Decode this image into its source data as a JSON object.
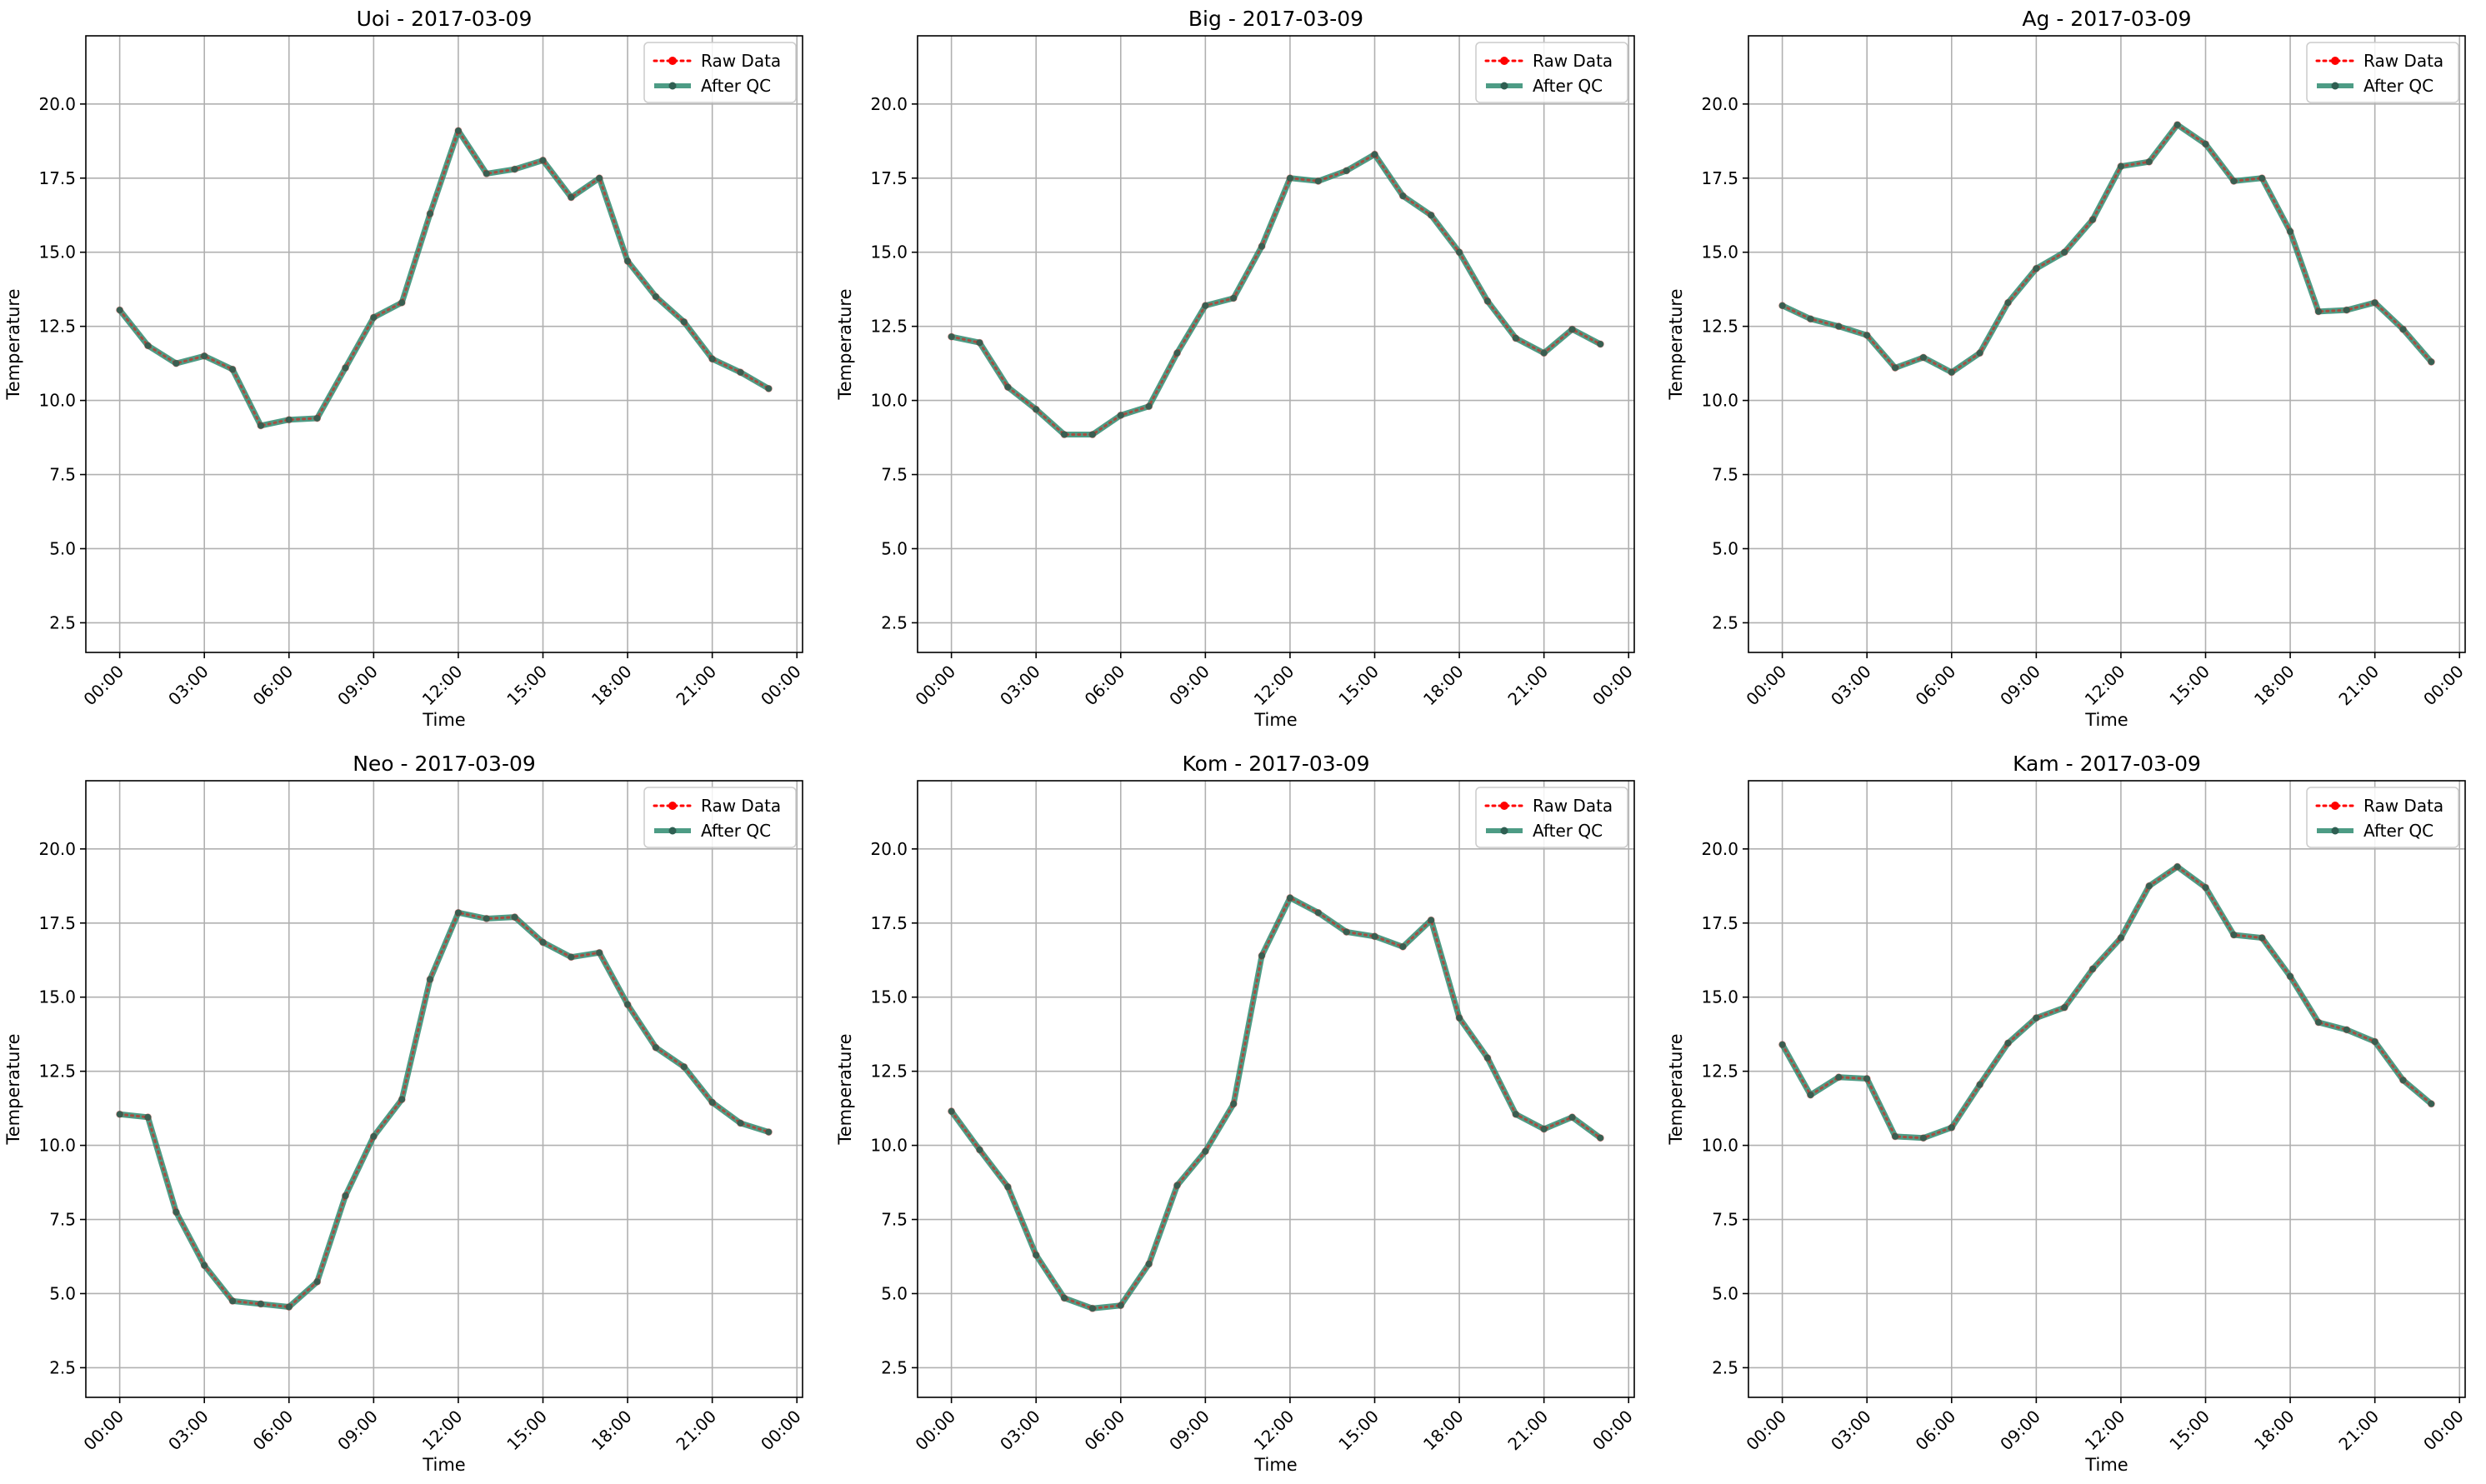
{
  "figure": {
    "raw_color": "#ff0000",
    "qc_color": "#2e8b70",
    "grid_color": "#b0b0b0"
  },
  "chart_data": [
    {
      "type": "line",
      "title": "Uoi - 2017-03-09",
      "xlabel": "Time",
      "ylabel": "Temperature",
      "x_ticks": [
        "00:00",
        "03:00",
        "06:00",
        "09:00",
        "12:00",
        "15:00",
        "18:00",
        "21:00",
        "00:00"
      ],
      "x_tick_hours": [
        0,
        3,
        6,
        9,
        12,
        15,
        18,
        21,
        24
      ],
      "xlim": [
        -1.2,
        24.2
      ],
      "y_ticks": [
        "2.5",
        "5.0",
        "7.5",
        "10.0",
        "12.5",
        "15.0",
        "17.5",
        "20.0"
      ],
      "ylim": [
        1.5,
        22.3
      ],
      "grid": true,
      "legend": "top-right",
      "x_hours": [
        0,
        1,
        2,
        3,
        4,
        5,
        6,
        7,
        8,
        9,
        10,
        11,
        12,
        13,
        14,
        15,
        16,
        17,
        18,
        19,
        20,
        21,
        22,
        23
      ],
      "series": [
        {
          "name": "Raw Data",
          "style": "dotted",
          "color": "#ff0000",
          "values": [
            13.05,
            11.85,
            11.25,
            11.5,
            11.05,
            9.15,
            9.35,
            9.4,
            11.1,
            12.8,
            13.3,
            16.3,
            19.1,
            17.65,
            17.8,
            18.1,
            16.85,
            17.5,
            14.7,
            13.5,
            12.65,
            11.4,
            10.95,
            10.4
          ]
        },
        {
          "name": "After QC",
          "style": "solid",
          "color": "#2e8b70",
          "values": [
            13.05,
            11.85,
            11.25,
            11.5,
            11.05,
            9.15,
            9.35,
            9.4,
            11.1,
            12.8,
            13.3,
            16.3,
            19.1,
            17.65,
            17.8,
            18.1,
            16.85,
            17.5,
            14.7,
            13.5,
            12.65,
            11.4,
            10.95,
            10.4
          ]
        }
      ]
    },
    {
      "type": "line",
      "title": "Big - 2017-03-09",
      "xlabel": "Time",
      "ylabel": "Temperature",
      "x_ticks": [
        "00:00",
        "03:00",
        "06:00",
        "09:00",
        "12:00",
        "15:00",
        "18:00",
        "21:00",
        "00:00"
      ],
      "x_tick_hours": [
        0,
        3,
        6,
        9,
        12,
        15,
        18,
        21,
        24
      ],
      "xlim": [
        -1.2,
        24.2
      ],
      "y_ticks": [
        "2.5",
        "5.0",
        "7.5",
        "10.0",
        "12.5",
        "15.0",
        "17.5",
        "20.0"
      ],
      "ylim": [
        1.5,
        22.3
      ],
      "grid": true,
      "legend": "top-right",
      "x_hours": [
        0,
        1,
        2,
        3,
        4,
        5,
        6,
        7,
        8,
        9,
        10,
        11,
        12,
        13,
        14,
        15,
        16,
        17,
        18,
        19,
        20,
        21,
        22,
        23
      ],
      "series": [
        {
          "name": "Raw Data",
          "style": "dotted",
          "color": "#ff0000",
          "values": [
            12.15,
            11.95,
            10.45,
            9.7,
            8.85,
            8.85,
            9.5,
            9.8,
            11.6,
            13.2,
            13.45,
            15.2,
            17.5,
            17.4,
            17.75,
            18.3,
            16.9,
            16.25,
            15.0,
            13.35,
            12.1,
            11.6,
            12.4,
            11.9
          ]
        },
        {
          "name": "After QC",
          "style": "solid",
          "color": "#2e8b70",
          "values": [
            12.15,
            11.95,
            10.45,
            9.7,
            8.85,
            8.85,
            9.5,
            9.8,
            11.6,
            13.2,
            13.45,
            15.2,
            17.5,
            17.4,
            17.75,
            18.3,
            16.9,
            16.25,
            15.0,
            13.35,
            12.1,
            11.6,
            12.4,
            11.9
          ]
        }
      ]
    },
    {
      "type": "line",
      "title": "Ag - 2017-03-09",
      "xlabel": "Time",
      "ylabel": "Temperature",
      "x_ticks": [
        "00:00",
        "03:00",
        "06:00",
        "09:00",
        "12:00",
        "15:00",
        "18:00",
        "21:00",
        "00:00"
      ],
      "x_tick_hours": [
        0,
        3,
        6,
        9,
        12,
        15,
        18,
        21,
        24
      ],
      "xlim": [
        -1.2,
        24.2
      ],
      "y_ticks": [
        "2.5",
        "5.0",
        "7.5",
        "10.0",
        "12.5",
        "15.0",
        "17.5",
        "20.0"
      ],
      "ylim": [
        1.5,
        22.3
      ],
      "grid": true,
      "legend": "top-right",
      "x_hours": [
        0,
        1,
        2,
        3,
        4,
        5,
        6,
        7,
        8,
        9,
        10,
        11,
        12,
        13,
        14,
        15,
        16,
        17,
        18,
        19,
        20,
        21,
        22,
        23
      ],
      "series": [
        {
          "name": "Raw Data",
          "style": "dotted",
          "color": "#ff0000",
          "values": [
            13.2,
            12.75,
            12.5,
            12.2,
            11.1,
            11.45,
            10.95,
            11.6,
            13.3,
            14.45,
            15.0,
            16.1,
            17.9,
            18.05,
            19.3,
            18.65,
            17.4,
            17.5,
            15.7,
            13.0,
            13.05,
            13.3,
            12.4,
            11.3
          ]
        },
        {
          "name": "After QC",
          "style": "solid",
          "color": "#2e8b70",
          "values": [
            13.2,
            12.75,
            12.5,
            12.2,
            11.1,
            11.45,
            10.95,
            11.6,
            13.3,
            14.45,
            15.0,
            16.1,
            17.9,
            18.05,
            19.3,
            18.65,
            17.4,
            17.5,
            15.7,
            13.0,
            13.05,
            13.3,
            12.4,
            11.3
          ]
        }
      ]
    },
    {
      "type": "line",
      "title": "Neo - 2017-03-09",
      "xlabel": "Time",
      "ylabel": "Temperature",
      "x_ticks": [
        "00:00",
        "03:00",
        "06:00",
        "09:00",
        "12:00",
        "15:00",
        "18:00",
        "21:00",
        "00:00"
      ],
      "x_tick_hours": [
        0,
        3,
        6,
        9,
        12,
        15,
        18,
        21,
        24
      ],
      "xlim": [
        -1.2,
        24.2
      ],
      "y_ticks": [
        "2.5",
        "5.0",
        "7.5",
        "10.0",
        "12.5",
        "15.0",
        "17.5",
        "20.0"
      ],
      "ylim": [
        1.5,
        22.3
      ],
      "grid": true,
      "legend": "top-right",
      "x_hours": [
        0,
        1,
        2,
        3,
        4,
        5,
        6,
        7,
        8,
        9,
        10,
        11,
        12,
        13,
        14,
        15,
        16,
        17,
        18,
        19,
        20,
        21,
        22,
        23
      ],
      "series": [
        {
          "name": "Raw Data",
          "style": "dotted",
          "color": "#ff0000",
          "values": [
            11.05,
            10.95,
            7.75,
            5.95,
            4.75,
            4.65,
            4.55,
            5.4,
            8.3,
            10.3,
            11.55,
            15.6,
            17.85,
            17.65,
            17.7,
            16.85,
            16.35,
            16.5,
            14.75,
            13.3,
            12.65,
            11.45,
            10.75,
            10.45
          ]
        },
        {
          "name": "After QC",
          "style": "solid",
          "color": "#2e8b70",
          "values": [
            11.05,
            10.95,
            7.75,
            5.95,
            4.75,
            4.65,
            4.55,
            5.4,
            8.3,
            10.3,
            11.55,
            15.6,
            17.85,
            17.65,
            17.7,
            16.85,
            16.35,
            16.5,
            14.75,
            13.3,
            12.65,
            11.45,
            10.75,
            10.45
          ]
        }
      ]
    },
    {
      "type": "line",
      "title": "Kom - 2017-03-09",
      "xlabel": "Time",
      "ylabel": "Temperature",
      "x_ticks": [
        "00:00",
        "03:00",
        "06:00",
        "09:00",
        "12:00",
        "15:00",
        "18:00",
        "21:00",
        "00:00"
      ],
      "x_tick_hours": [
        0,
        3,
        6,
        9,
        12,
        15,
        18,
        21,
        24
      ],
      "xlim": [
        -1.2,
        24.2
      ],
      "y_ticks": [
        "2.5",
        "5.0",
        "7.5",
        "10.0",
        "12.5",
        "15.0",
        "17.5",
        "20.0"
      ],
      "ylim": [
        1.5,
        22.3
      ],
      "grid": true,
      "legend": "top-right",
      "x_hours": [
        0,
        1,
        2,
        3,
        4,
        5,
        6,
        7,
        8,
        9,
        10,
        11,
        12,
        13,
        14,
        15,
        16,
        17,
        18,
        19,
        20,
        21,
        22,
        23
      ],
      "series": [
        {
          "name": "Raw Data",
          "style": "dotted",
          "color": "#ff0000",
          "values": [
            11.15,
            9.85,
            8.6,
            6.3,
            4.85,
            4.5,
            4.6,
            6.0,
            8.65,
            9.8,
            11.4,
            16.4,
            18.35,
            17.85,
            17.2,
            17.05,
            16.7,
            17.6,
            14.3,
            12.95,
            11.05,
            10.55,
            10.95,
            10.25
          ]
        },
        {
          "name": "After QC",
          "style": "solid",
          "color": "#2e8b70",
          "values": [
            11.15,
            9.85,
            8.6,
            6.3,
            4.85,
            4.5,
            4.6,
            6.0,
            8.65,
            9.8,
            11.4,
            16.4,
            18.35,
            17.85,
            17.2,
            17.05,
            16.7,
            17.6,
            14.3,
            12.95,
            11.05,
            10.55,
            10.95,
            10.25
          ]
        }
      ]
    },
    {
      "type": "line",
      "title": "Kam - 2017-03-09",
      "xlabel": "Time",
      "ylabel": "Temperature",
      "x_ticks": [
        "00:00",
        "03:00",
        "06:00",
        "09:00",
        "12:00",
        "15:00",
        "18:00",
        "21:00",
        "00:00"
      ],
      "x_tick_hours": [
        0,
        3,
        6,
        9,
        12,
        15,
        18,
        21,
        24
      ],
      "xlim": [
        -1.2,
        24.2
      ],
      "y_ticks": [
        "2.5",
        "5.0",
        "7.5",
        "10.0",
        "12.5",
        "15.0",
        "17.5",
        "20.0"
      ],
      "ylim": [
        1.5,
        22.3
      ],
      "grid": true,
      "legend": "top-right",
      "x_hours": [
        0,
        1,
        2,
        3,
        4,
        5,
        6,
        7,
        8,
        9,
        10,
        11,
        12,
        13,
        14,
        15,
        16,
        17,
        18,
        19,
        20,
        21,
        22,
        23
      ],
      "series": [
        {
          "name": "Raw Data",
          "style": "dotted",
          "color": "#ff0000",
          "values": [
            13.4,
            11.7,
            12.3,
            12.25,
            10.3,
            10.25,
            10.6,
            12.05,
            13.45,
            14.3,
            14.65,
            15.95,
            17.0,
            18.75,
            19.4,
            18.7,
            17.1,
            17.0,
            15.7,
            14.15,
            13.9,
            13.5,
            12.2,
            11.4
          ]
        },
        {
          "name": "After QC",
          "style": "solid",
          "color": "#2e8b70",
          "values": [
            13.4,
            11.7,
            12.3,
            12.25,
            10.3,
            10.25,
            10.6,
            12.05,
            13.45,
            14.3,
            14.65,
            15.95,
            17.0,
            18.75,
            19.4,
            18.7,
            17.1,
            17.0,
            15.7,
            14.15,
            13.9,
            13.5,
            12.2,
            11.4
          ]
        }
      ]
    }
  ]
}
